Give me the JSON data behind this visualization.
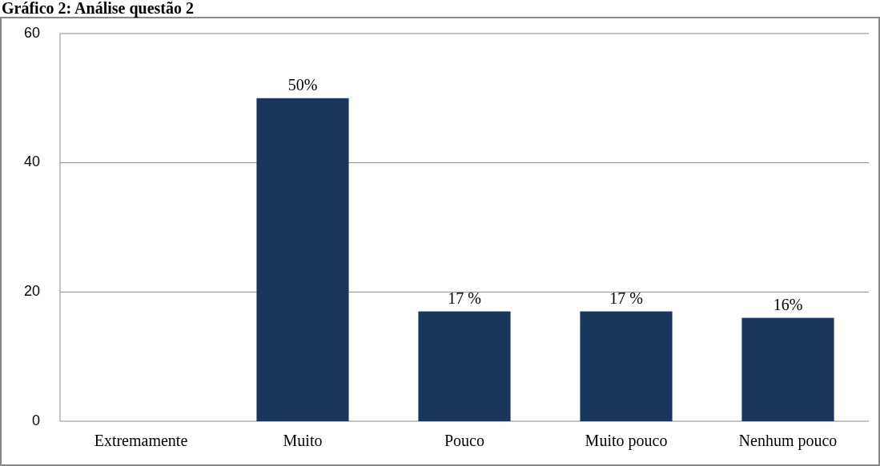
{
  "chart_data": {
    "type": "bar",
    "title": "Gráfico 2: Análise questão 2",
    "categories": [
      "Extremamente",
      "Muito",
      "Pouco",
      "Muito pouco",
      "Nenhum pouco"
    ],
    "values": [
      0,
      50,
      17,
      17,
      16
    ],
    "value_labels": [
      null,
      "50%",
      "17 %",
      "17 %",
      "16%"
    ],
    "color": "#1a365d",
    "ylim": [
      0,
      60
    ],
    "yticks": [
      0,
      20,
      40,
      60
    ],
    "grid": "y"
  }
}
